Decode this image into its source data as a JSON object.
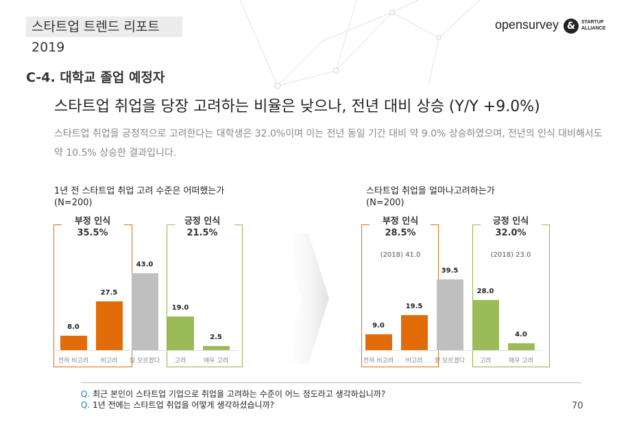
{
  "header": {
    "report_tag": "스타트업 트렌드 리포트2019",
    "logo_text": "opensurvey",
    "partner_mark": "&",
    "partner_line1": "STARTUP",
    "partner_line2": "ALLIANCE"
  },
  "section_title": "C-4. 대학교 졸업 예정자",
  "headline": "스타트업 취업을 당장 고려하는 비율은 낮으나, 전년 대비 상승 (Y/Y +9.0%)",
  "summary": "스타트업 취업을 긍정적으로 고려한다는 대학생은 32.0%이며 이는 전년 동일 기간 대비 약 9.0% 상승하였으며, 전년의 인식 대비해서도 약 10.5% 상승한 결과입니다.",
  "colors": {
    "negative": "#e36c0a",
    "neutral": "#bfbfbf",
    "positive": "#9bbb59",
    "accent_q": "#1f7fc4"
  },
  "chart_data": [
    {
      "type": "bar",
      "title": "1년 전 스타트업 취업 고려 수준은 어떠했는가",
      "subtitle": "(N=200)",
      "categories": [
        "전혀 비고려",
        "비고려",
        "잘 모르겠다",
        "고려",
        "매우 고려"
      ],
      "values": [
        8.0,
        27.5,
        43.0,
        19.0,
        2.5
      ],
      "value_labels": [
        "8.0",
        "27.5",
        "43.0",
        "19.0",
        "2.5"
      ],
      "colors": [
        "#e36c0a",
        "#e36c0a",
        "#bfbfbf",
        "#9bbb59",
        "#9bbb59"
      ],
      "groups": [
        {
          "label": "부정 인식",
          "value": "35.5%"
        },
        {
          "label": "긍정 인식",
          "value": "21.5%"
        }
      ],
      "unit": "%"
    },
    {
      "type": "bar",
      "title": "스타트업 취업을 얼마나고려하는가",
      "subtitle": "(N=200)",
      "categories": [
        "전혀 비고려",
        "비고려",
        "잘 모르겠다",
        "고려",
        "매우 고려"
      ],
      "values": [
        9.0,
        19.5,
        39.5,
        28.0,
        4.0
      ],
      "value_labels": [
        "9.0",
        "19.5",
        "39.5",
        "28.0",
        "4.0"
      ],
      "colors": [
        "#e36c0a",
        "#e36c0a",
        "#bfbfbf",
        "#9bbb59",
        "#9bbb59"
      ],
      "groups": [
        {
          "label": "부정 인식",
          "value": "28.5%",
          "reference": "(2018) 41.0"
        },
        {
          "label": "긍정 인식",
          "value": "32.0%",
          "reference": "(2018) 23.0"
        }
      ],
      "unit": "%"
    }
  ],
  "footer": {
    "questions": [
      {
        "marker": "Q.",
        "text": "최근 본인이 스타트업 기업으로 취업을 고려하는 수준이 어느 정도라고 생각하십니까?"
      },
      {
        "marker": "Q.",
        "text": "1년 전에는 스타트업 취업을 어떻게 생각하셨습니까?"
      }
    ],
    "page_number": "70"
  }
}
